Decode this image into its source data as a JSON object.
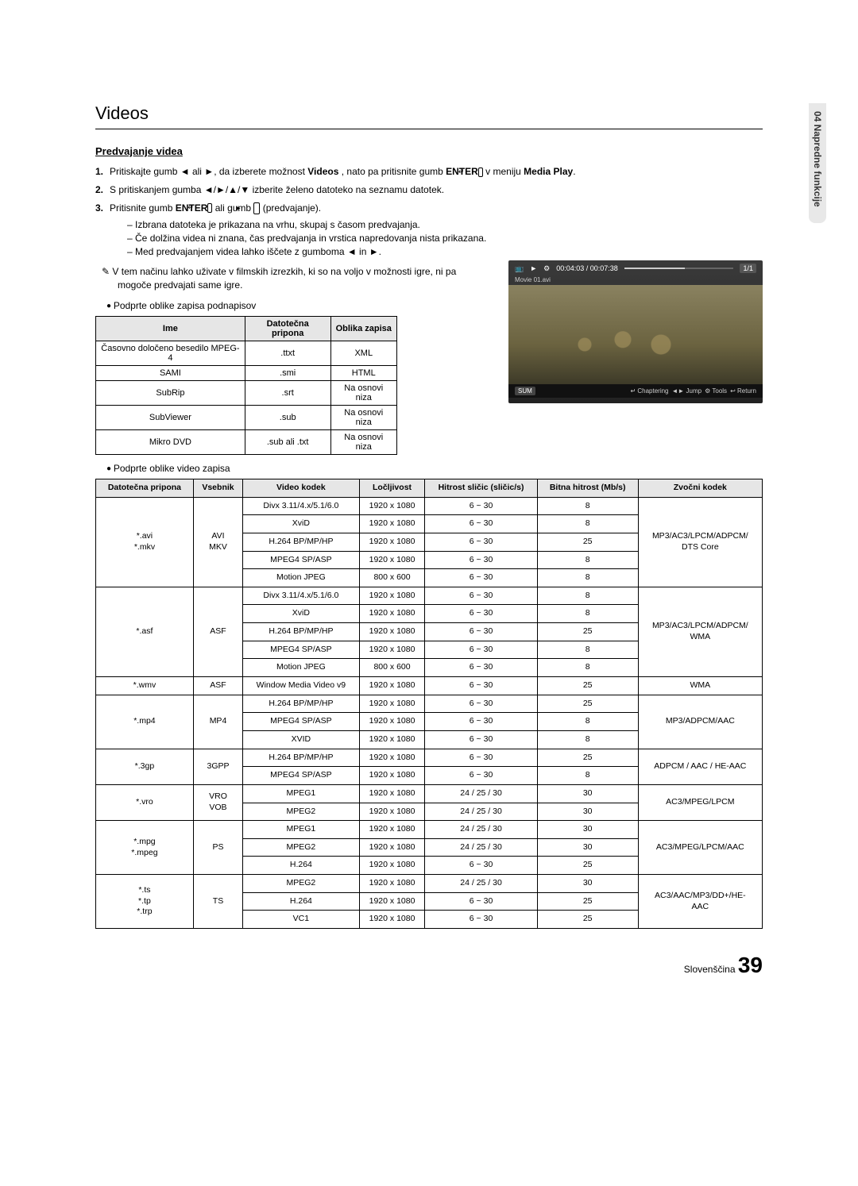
{
  "side_tab": "04  Napredne funkcije",
  "title": "Videos",
  "subheading": "Predvajanje videa",
  "steps": [
    {
      "n": "1.",
      "pre": "Pritiskajte gumb ",
      "g1": "◄",
      "mid": " ali ",
      "g2": "►",
      "post": ", da izberete možnost ",
      "b1": "Videos",
      "post2": " , nato pa pritisnite gumb ",
      "b2": "ENTER",
      "icon": "↵",
      "post3": " v meniju ",
      "b3": "Media Play",
      "end": "."
    },
    {
      "n": "2.",
      "pre": "S pritiskanjem gumba ",
      "g": "◄/►/▲/▼",
      "post": " izberite želeno datoteko na seznamu datotek."
    },
    {
      "n": "3.",
      "pre": "Pritisnite gumb ",
      "b1": "ENTER",
      "icon": "↵",
      "mid": " ali gumb ",
      "play": "►",
      "post": " (predvajanje)."
    }
  ],
  "sub_items": [
    "Izbrana datoteka je prikazana na vrhu, skupaj s časom predvajanja.",
    "Če dolžina videa ni znana, čas predvajanja in vrstica napredovanja nista prikazana.",
    {
      "pre": "Med predvajanjem videa lahko iščete z gumboma ",
      "g1": "◄",
      "mid": " in ",
      "g2": "►",
      "end": "."
    }
  ],
  "note": "V tem načinu lahko uživate v filmskih izrezkih, ki so na voljo v možnosti igre, ni pa mogoče predvajati same igre.",
  "bullet_sub": "Podprte oblike zapisa podnapisov",
  "bullet_vid": "Podprte oblike video zapisa",
  "sub_table": {
    "headers": [
      "Ime",
      "Datotečna pripona",
      "Oblika zapisa"
    ],
    "rows": [
      [
        "Časovno določeno besedilo MPEG-4",
        ".ttxt",
        "XML"
      ],
      [
        "SAMI",
        ".smi",
        "HTML"
      ],
      [
        "SubRip",
        ".srt",
        "Na osnovi niza"
      ],
      [
        "SubViewer",
        ".sub",
        "Na osnovi niza"
      ],
      [
        "Mikro DVD",
        ".sub ali .txt",
        "Na osnovi niza"
      ]
    ]
  },
  "preview": {
    "time": "00:04:03 / 00:07:38",
    "counter": "1/1",
    "filename": "Movie 01.avi",
    "sum": "SUM",
    "hints": [
      "↵ Chaptering",
      "◄► Jump",
      "⚙ Tools",
      "↩ Return"
    ],
    "icons": [
      "📺",
      "►",
      "⚙"
    ]
  },
  "fmt_headers": [
    "Datotečna pripona",
    "Vsebnik",
    "Video kodek",
    "Ločljivost",
    "Hitrost sličic (sličic/s)",
    "Bitna hitrost (Mb/s)",
    "Zvočni kodek"
  ],
  "fmt_groups": [
    {
      "ext": "*.avi\n*.mkv",
      "cont": "AVI\nMKV",
      "rows": [
        [
          "Divx 3.11/4.x/5.1/6.0",
          "1920 x 1080",
          "6 ~ 30",
          "8"
        ],
        [
          "XviD",
          "1920 x 1080",
          "6 ~ 30",
          "8"
        ],
        [
          "H.264 BP/MP/HP",
          "1920 x 1080",
          "6 ~ 30",
          "25"
        ],
        [
          "MPEG4 SP/ASP",
          "1920 x 1080",
          "6 ~ 30",
          "8"
        ],
        [
          "Motion JPEG",
          "800 x 600",
          "6 ~ 30",
          "8"
        ]
      ],
      "audio": "MP3/AC3/LPCM/ADPCM/\nDTS Core"
    },
    {
      "ext": "*.asf",
      "cont": "ASF",
      "rows": [
        [
          "Divx 3.11/4.x/5.1/6.0",
          "1920 x 1080",
          "6 ~ 30",
          "8"
        ],
        [
          "XviD",
          "1920 x 1080",
          "6 ~ 30",
          "8"
        ],
        [
          "H.264 BP/MP/HP",
          "1920 x 1080",
          "6 ~ 30",
          "25"
        ],
        [
          "MPEG4 SP/ASP",
          "1920 x 1080",
          "6 ~ 30",
          "8"
        ],
        [
          "Motion JPEG",
          "800 x 600",
          "6 ~ 30",
          "8"
        ]
      ],
      "audio": "MP3/AC3/LPCM/ADPCM/\nWMA"
    },
    {
      "ext": "*.wmv",
      "cont": "ASF",
      "rows": [
        [
          "Window Media Video v9",
          "1920 x 1080",
          "6 ~ 30",
          "25"
        ]
      ],
      "audio": "WMA"
    },
    {
      "ext": "*.mp4",
      "cont": "MP4",
      "rows": [
        [
          "H.264 BP/MP/HP",
          "1920 x 1080",
          "6 ~ 30",
          "25"
        ],
        [
          "MPEG4 SP/ASP",
          "1920 x 1080",
          "6 ~ 30",
          "8"
        ],
        [
          "XVID",
          "1920 x 1080",
          "6 ~ 30",
          "8"
        ]
      ],
      "audio": "MP3/ADPCM/AAC"
    },
    {
      "ext": "*.3gp",
      "cont": "3GPP",
      "rows": [
        [
          "H.264 BP/MP/HP",
          "1920 x 1080",
          "6 ~ 30",
          "25"
        ],
        [
          "MPEG4 SP/ASP",
          "1920 x 1080",
          "6 ~ 30",
          "8"
        ]
      ],
      "audio": "ADPCM / AAC / HE-AAC"
    },
    {
      "ext": "*.vro",
      "cont": "VRO\nVOB",
      "rows": [
        [
          "MPEG1",
          "1920 x 1080",
          "24 / 25 / 30",
          "30"
        ],
        [
          "MPEG2",
          "1920 x 1080",
          "24 / 25 / 30",
          "30"
        ]
      ],
      "audio": "AC3/MPEG/LPCM"
    },
    {
      "ext": "*.mpg\n*.mpeg",
      "cont": "PS",
      "rows": [
        [
          "MPEG1",
          "1920 x 1080",
          "24 / 25 / 30",
          "30"
        ],
        [
          "MPEG2",
          "1920 x 1080",
          "24 / 25 / 30",
          "30"
        ],
        [
          "H.264",
          "1920 x 1080",
          "6 ~ 30",
          "25"
        ]
      ],
      "audio": "AC3/MPEG/LPCM/AAC"
    },
    {
      "ext": "*.ts\n*.tp\n*.trp",
      "cont": "TS",
      "rows": [
        [
          "MPEG2",
          "1920 x 1080",
          "24 / 25 / 30",
          "30"
        ],
        [
          "H.264",
          "1920 x 1080",
          "6 ~ 30",
          "25"
        ],
        [
          "VC1",
          "1920 x 1080",
          "6 ~ 30",
          "25"
        ]
      ],
      "audio": "AC3/AAC/MP3/DD+/HE-\nAAC"
    }
  ],
  "footer": {
    "lang": "Slovenščina",
    "page": "39"
  }
}
